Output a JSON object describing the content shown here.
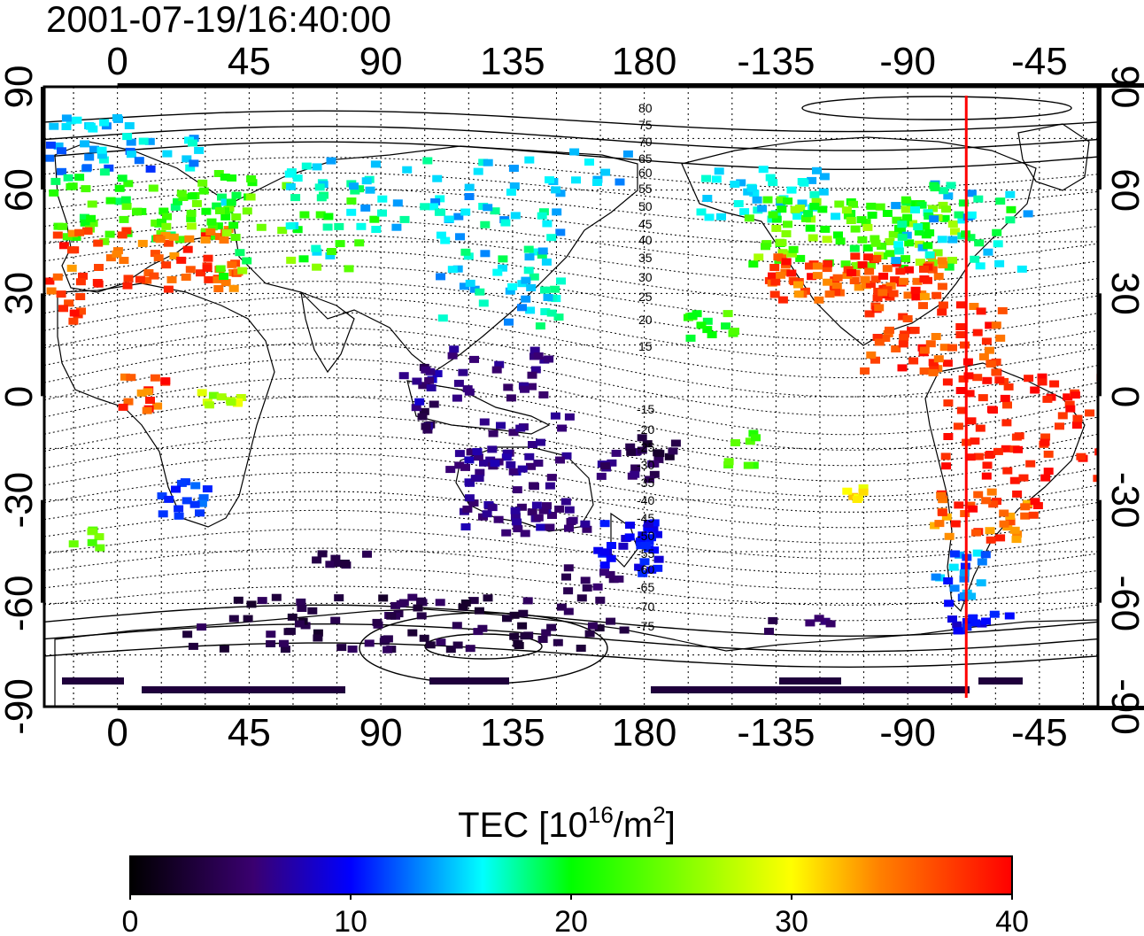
{
  "title": "2001-07-19/16:40:00",
  "map": {
    "top_lon_ticks": [
      "0",
      "45",
      "90",
      "135",
      "180",
      "-135",
      "-90",
      "-45"
    ],
    "bottom_lon_ticks": [
      "0",
      "45",
      "90",
      "135",
      "180",
      "-135",
      "-90",
      "-45"
    ],
    "left_lat_ticks": [
      "90",
      "60",
      "30",
      "0",
      "-30",
      "-60",
      "-90"
    ],
    "right_lat_ticks": [
      "90",
      "60",
      "30",
      "0",
      "-30",
      "-60",
      "-90"
    ],
    "contour_labels_north": [
      "80",
      "75",
      "70",
      "65",
      "60",
      "55",
      "50",
      "45",
      "40",
      "35",
      "30",
      "25",
      "20",
      "15"
    ],
    "contour_labels_south": [
      "-15",
      "-20",
      "-25",
      "-30",
      "-35",
      "-40",
      "-45",
      "-50",
      "-55",
      "-60",
      "-65",
      "-70",
      "-75"
    ],
    "terminator_longitude": -70,
    "terminator_color": "#ff0000"
  },
  "colorbar": {
    "title_prefix": "TEC  [10",
    "title_sup1": "16",
    "title_mid": "/m",
    "title_sup2": "2",
    "title_suffix": "]",
    "tick_labels": [
      "0",
      "10",
      "20",
      "30",
      "40"
    ],
    "min": 0,
    "max": 40,
    "colors": [
      "#000000",
      "#3a0070",
      "#0000ff",
      "#00ffff",
      "#00ff00",
      "#ffff00",
      "#ff8000",
      "#ff0000"
    ]
  }
}
